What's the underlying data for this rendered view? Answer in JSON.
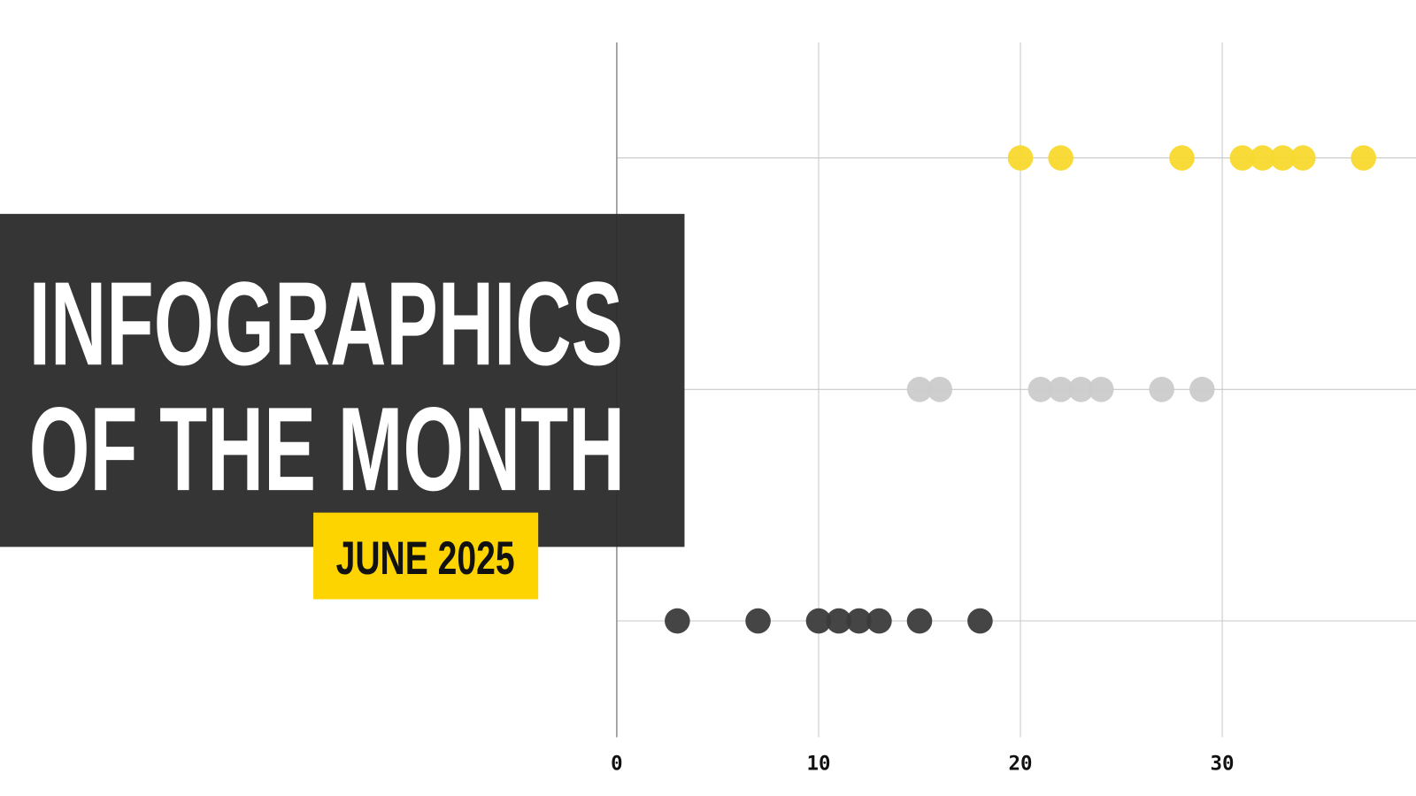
{
  "title_lines": [
    "INFOGRAPHICS",
    "OF THE MONTH"
  ],
  "date_badge": "JUNE 2025",
  "chart_data": {
    "type": "scatter",
    "xlim": [
      0,
      39.6
    ],
    "xticks": [
      0,
      10,
      20,
      30
    ],
    "grid": true,
    "series": [
      {
        "color": "#f8d92e",
        "values": [
          20,
          22,
          28,
          31,
          32,
          33,
          34,
          37
        ]
      },
      {
        "color": "#cbcbcb",
        "values": [
          15,
          16,
          21,
          22,
          23,
          24,
          27,
          29
        ]
      },
      {
        "color": "#3b3b3b",
        "values": [
          3,
          7,
          10,
          11,
          12,
          13,
          15,
          18
        ]
      }
    ]
  }
}
